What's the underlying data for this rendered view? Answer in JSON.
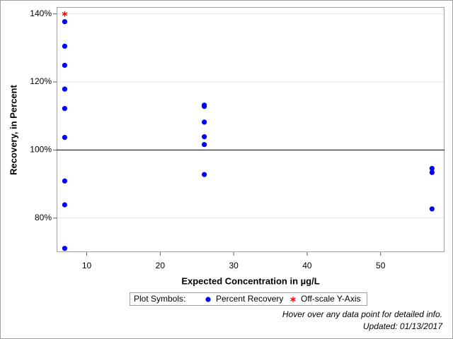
{
  "chart_data": {
    "type": "scatter",
    "x_label": "Expected Concentration in µg/L",
    "y_label": "Recovery, in Percent",
    "xlim": [
      5.9,
      58.7
    ],
    "ylim": [
      70,
      142
    ],
    "xticks": [
      10,
      20,
      30,
      40,
      50
    ],
    "yticks": [
      {
        "value": 80,
        "label": "80%"
      },
      {
        "value": 100,
        "label": "100%"
      },
      {
        "value": 120,
        "label": "120%"
      },
      {
        "value": 140,
        "label": "140%"
      }
    ],
    "grid": true,
    "reference_line": 100,
    "legend_title": "Plot Symbols:",
    "series": [
      {
        "name": "Percent Recovery",
        "color": "#0000ff",
        "marker": "circle",
        "x": [
          7,
          7,
          7,
          7,
          7,
          7,
          7,
          7,
          7,
          26,
          26,
          26,
          26,
          26,
          26,
          57,
          57,
          57
        ],
        "values": [
          137.7,
          130.5,
          124.9,
          117.9,
          112.2,
          103.7,
          90.9,
          83.9,
          71.1,
          113.2,
          112.8,
          108.2,
          103.9,
          101.6,
          92.8,
          94.6,
          93.4,
          82.7
        ]
      },
      {
        "name": "Off-scale Y-Axis",
        "color": "#ff0000",
        "marker": "star",
        "x": [
          7
        ],
        "values": [
          140
        ]
      }
    ],
    "notes": [
      "Hover over any data point for detailed info.",
      "Updated: 01/13/2017"
    ]
  }
}
